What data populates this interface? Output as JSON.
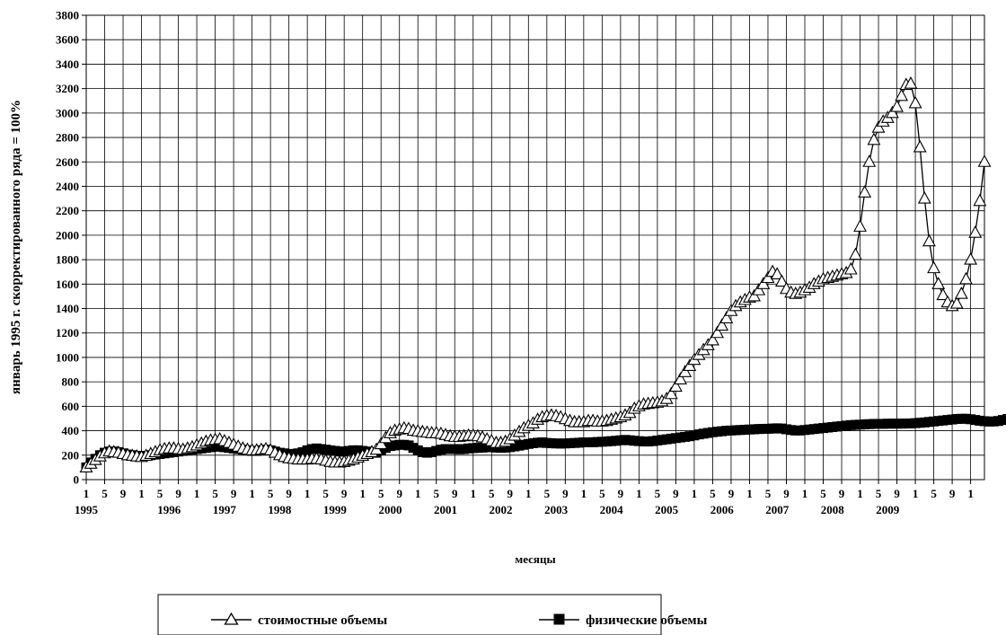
{
  "chart_data": {
    "type": "line",
    "title": "",
    "ylabel": "январь 1995 г. скорректированного ряда = 100%",
    "xlabel": "месяцы",
    "ylim": [
      0,
      3800
    ],
    "y_ticks": [
      0,
      200,
      400,
      600,
      800,
      1000,
      1200,
      1400,
      1600,
      1800,
      2000,
      2200,
      2400,
      2600,
      2800,
      3000,
      3200,
      3400,
      3600,
      3800
    ],
    "x_start": "1995-01",
    "x_month_tick_labels": [
      "1",
      "5",
      "9"
    ],
    "x_year_labels": [
      "1995",
      "1996",
      "1997",
      "1998",
      "1999",
      "2000",
      "2001",
      "2002",
      "2003",
      "2004",
      "2005",
      "2006",
      "2007",
      "2008",
      "2009"
    ],
    "grid": true,
    "legend_position": "bottom",
    "series": [
      {
        "name": "стоимостные объемы",
        "marker": "triangle-open",
        "color": "#000000",
        "values": [
          100,
          130,
          160,
          190,
          215,
          230,
          225,
          220,
          210,
          200,
          195,
          190,
          185,
          195,
          210,
          225,
          240,
          250,
          255,
          255,
          250,
          245,
          255,
          265,
          280,
          295,
          310,
          320,
          325,
          330,
          315,
          300,
          285,
          270,
          255,
          245,
          240,
          240,
          245,
          250,
          240,
          220,
          200,
          185,
          175,
          170,
          165,
          165,
          165,
          170,
          170,
          165,
          155,
          145,
          140,
          140,
          145,
          155,
          165,
          180,
          195,
          210,
          225,
          245,
          290,
          340,
          380,
          400,
          410,
          420,
          415,
          400,
          395,
          390,
          385,
          380,
          380,
          375,
          365,
          355,
          350,
          350,
          355,
          360,
          360,
          355,
          345,
          330,
          315,
          300,
          300,
          310,
          330,
          360,
          390,
          420,
          440,
          460,
          490,
          510,
          520,
          525,
          520,
          510,
          495,
          480,
          470,
          470,
          470,
          480,
          480,
          475,
          475,
          480,
          490,
          500,
          510,
          525,
          545,
          580,
          600,
          615,
          620,
          625,
          630,
          640,
          660,
          700,
          760,
          820,
          880,
          930,
          980,
          1020,
          1060,
          1100,
          1140,
          1200,
          1260,
          1320,
          1380,
          1420,
          1450,
          1470,
          1490,
          1500,
          1550,
          1600,
          1650,
          1700,
          1680,
          1620,
          1560,
          1530,
          1520,
          1530,
          1550,
          1570,
          1600,
          1620,
          1640,
          1650,
          1660,
          1670,
          1680,
          1690,
          1720,
          1840,
          2070,
          2350,
          2600,
          2780,
          2880,
          2930,
          2960,
          3000,
          3050,
          3140,
          3230,
          3240,
          3080,
          2720,
          2300,
          1950,
          1730,
          1600,
          1510,
          1450,
          1420,
          1440,
          1520,
          1640,
          1800,
          2020,
          2280,
          2600
        ]
      },
      {
        "name": "физические объемы",
        "marker": "square-filled",
        "color": "#000000",
        "values": [
          100,
          140,
          170,
          200,
          220,
          230,
          230,
          225,
          215,
          205,
          200,
          195,
          190,
          195,
          200,
          205,
          210,
          215,
          220,
          225,
          230,
          235,
          240,
          245,
          250,
          255,
          260,
          265,
          270,
          270,
          265,
          260,
          255,
          250,
          245,
          240,
          235,
          235,
          240,
          245,
          240,
          230,
          220,
          215,
          210,
          210,
          215,
          225,
          240,
          250,
          255,
          250,
          245,
          240,
          235,
          230,
          230,
          235,
          240,
          240,
          235,
          230,
          225,
          220,
          240,
          260,
          275,
          280,
          285,
          285,
          280,
          260,
          240,
          225,
          220,
          225,
          235,
          245,
          250,
          250,
          250,
          248,
          250,
          255,
          258,
          260,
          262,
          265,
          265,
          262,
          260,
          262,
          266,
          272,
          278,
          285,
          292,
          298,
          302,
          305,
          300,
          298,
          296,
          295,
          296,
          298,
          300,
          302,
          305,
          305,
          306,
          308,
          310,
          312,
          315,
          318,
          322,
          325,
          322,
          318,
          315,
          312,
          312,
          315,
          320,
          325,
          330,
          335,
          340,
          345,
          350,
          355,
          362,
          370,
          376,
          382,
          388,
          392,
          396,
          400,
          402,
          404,
          406,
          408,
          410,
          412,
          414,
          415,
          416,
          418,
          420,
          418,
          412,
          406,
          402,
          402,
          406,
          410,
          414,
          418,
          422,
          426,
          430,
          434,
          438,
          442,
          446,
          448,
          450,
          452,
          454,
          456,
          456,
          456,
          458,
          458,
          458,
          458,
          459,
          460,
          462,
          465,
          468,
          472,
          476,
          480,
          484,
          488,
          492,
          496,
          498,
          498,
          494,
          488,
          482,
          478,
          475,
          476,
          480,
          488,
          496,
          502,
          508,
          510,
          512,
          512,
          512
        ]
      }
    ]
  }
}
